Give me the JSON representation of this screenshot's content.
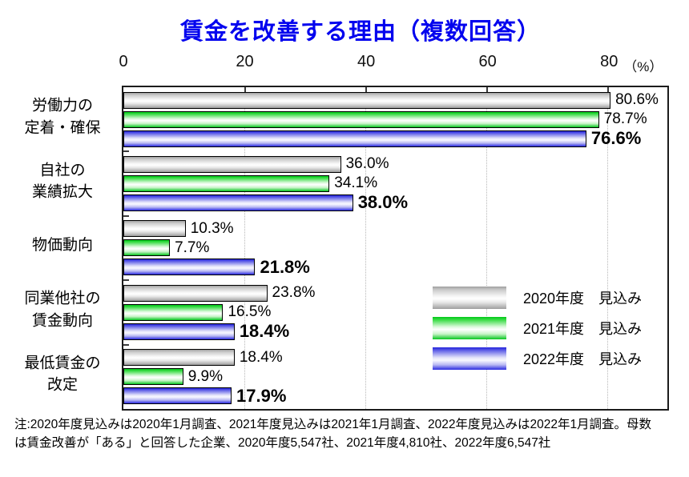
{
  "footnote": "注:2020年度見込みは2020年1月調査、2021年度見込みは2021年1月調査、2022年度見込みは2022年1月調査。母数\nは賃金改善が「ある」と回答した企業、2020年度5,547社、2021年度4,810社、2022年度6,547社",
  "chart_data": {
    "type": "bar",
    "orientation": "horizontal",
    "title": "賃金を改善する理由（複数回答）",
    "title_color": "#0404ee",
    "unit_label": "（%）",
    "xlim": [
      0,
      90
    ],
    "xticks": [
      0,
      20,
      40,
      60,
      80
    ],
    "gridlines": [
      20,
      40,
      60,
      80
    ],
    "grid": "dotted-vertical",
    "legend_position": "inside-lower-right",
    "value_suffix": "%",
    "categories": [
      "労働力の\n定着・確保",
      "自社の\n業績拡大",
      "物価動向",
      "同業他社の\n賃金動向",
      "最低賃金の\n改定"
    ],
    "series": [
      {
        "name": "2020年度　見込み",
        "color_key": "gray",
        "edge_color": "#9f9f9f",
        "emphasis": false,
        "values": [
          80.6,
          36.0,
          10.3,
          23.8,
          18.4
        ]
      },
      {
        "name": "2021年度　見込み",
        "color_key": "green",
        "edge_color": "#00c818",
        "emphasis": false,
        "values": [
          78.7,
          34.1,
          7.7,
          16.5,
          9.9
        ]
      },
      {
        "name": "2022年度　見込み",
        "color_key": "blue",
        "edge_color": "#2323dc",
        "emphasis": true,
        "values": [
          76.6,
          38.0,
          21.8,
          18.4,
          17.9
        ]
      }
    ]
  }
}
